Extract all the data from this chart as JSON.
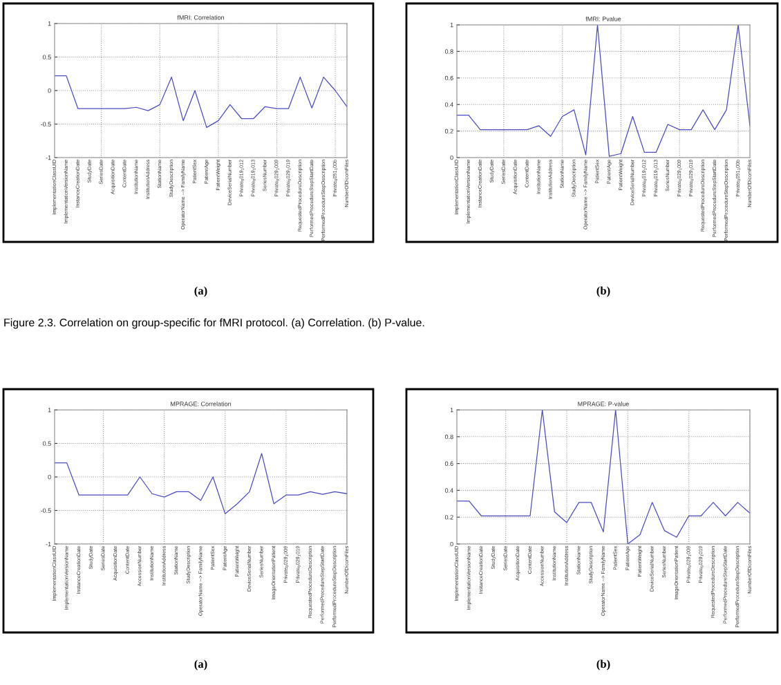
{
  "chart_data": [
    {
      "type": "line",
      "title": "fMRI: Correlation",
      "categories": [
        "ImplementationClassUID",
        "ImplementationVersionName",
        "InstanceCreationDate",
        "StudyDate",
        "SeriesDate",
        "AcquisitionDate",
        "ContentDate",
        "InstitutionName",
        "InstitutionAddress",
        "StationName",
        "StudyDescription",
        "OperatorName --> FamilyName",
        "PatientSex",
        "PatientAge",
        "PatientWeight",
        "DeviceSerialNumber",
        "Private$_{0}$019$_{1}$012",
        "Private$_{0}$019$_{1}$013",
        "SeriesNumber",
        "Private$_{0}$029$_{1}$009",
        "Private$_{0}$029$_{1}$019",
        "RequestedProcedureDescription",
        "PerformedProcedureStepStartDate",
        "PerformedProcedureStepDescription",
        "Private$_{0}$051$_{1}$00b",
        "NumberOfDicomFiles"
      ],
      "series": [
        {
          "color": "#4a4ac4",
          "values": [
            0.22,
            0.22,
            -0.27,
            -0.27,
            -0.27,
            -0.27,
            -0.27,
            -0.25,
            -0.3,
            -0.21,
            0.2,
            -0.45,
            0,
            -0.55,
            -0.45,
            -0.21,
            -0.42,
            -0.42,
            -0.24,
            -0.27,
            -0.27,
            0.2,
            -0.26,
            0.2,
            0,
            -0.24
          ]
        }
      ],
      "ylim": [
        -1,
        1
      ],
      "yticks": [
        -1,
        -0.5,
        0,
        0.5,
        1
      ],
      "grid": true,
      "annotations": [
        "(a)",
        "Figure 2.3. Correlation on group-specific for fMRI protocol. (a) Correlation. (b) P-value."
      ]
    },
    {
      "type": "line",
      "title": "fMRI: Pvalue",
      "categories": [
        "ImplementationClassUID",
        "ImplementationVersionName",
        "InstanceCreationDate",
        "StudyDate",
        "SeriesDate",
        "AcquisitionDate",
        "ContentDate",
        "InstitutionName",
        "InstitutionAddress",
        "StationName",
        "StudyDescription",
        "OperatorName --> FamilyName",
        "PatientSex",
        "PatientAge",
        "PatientWeight",
        "DeviceSerialNumber",
        "Private$_{0}$019$_{1}$012",
        "Private$_{0}$019$_{1}$013",
        "SeriesNumber",
        "Private$_{0}$029$_{1}$009",
        "Private$_{0}$029$_{1}$019",
        "RequestedProcedureDescription",
        "PerformedProcedureStepStartDate",
        "PerformedProcedureStepDescription",
        "Private$_{0}$051$_{1}$00b",
        "NumberOfDicomFiles"
      ],
      "series": [
        {
          "color": "#4a4ac4",
          "values": [
            0.32,
            0.32,
            0.21,
            0.21,
            0.21,
            0.21,
            0.21,
            0.24,
            0.16,
            0.31,
            0.36,
            0.02,
            1.0,
            0.01,
            0.03,
            0.31,
            0.04,
            0.04,
            0.25,
            0.21,
            0.21,
            0.36,
            0.21,
            0.36,
            1.0,
            0.24
          ]
        }
      ],
      "ylim": [
        0,
        1
      ],
      "yticks": [
        0,
        0.2,
        0.4,
        0.6,
        0.8,
        1
      ],
      "grid": true,
      "annotations": [
        "(b)"
      ]
    },
    {
      "type": "line",
      "title": "MPRAGE: Correlation",
      "categories": [
        "ImplementationClassUID",
        "ImplementationVersionName",
        "InstanceCreationDate",
        "StudyDate",
        "SeriesDate",
        "AcquisitionDate",
        "ContentDate",
        "AccessionNumber",
        "InstitutionName",
        "InstitutionAddress",
        "StationName",
        "StudyDescription",
        "OperatorName --> FamilyName",
        "PatientSex",
        "PatientAge",
        "PatientWeight",
        "DeviceSerialNumber",
        "SeriesNumber",
        "ImageOrientationPatient",
        "Private$_{0}$029$_{1}$009",
        "Private$_{0}$029$_{1}$019",
        "RequestedProcedureDescription",
        "PerformedProcedureStepStartDate",
        "PerformedProcedureStepDescription",
        "NumberOfDicomFiles"
      ],
      "series": [
        {
          "color": "#4a4ac4",
          "values": [
            0.21,
            0.21,
            -0.27,
            -0.27,
            -0.27,
            -0.27,
            -0.27,
            0.0,
            -0.25,
            -0.3,
            -0.22,
            -0.22,
            -0.35,
            0.0,
            -0.55,
            -0.4,
            -0.22,
            0.35,
            -0.4,
            -0.27,
            -0.27,
            -0.22,
            -0.26,
            -0.22,
            -0.25
          ]
        }
      ],
      "ylim": [
        -1,
        1
      ],
      "yticks": [
        -1,
        -0.5,
        0,
        0.5,
        1
      ],
      "grid": true,
      "annotations": [
        "(a)"
      ]
    },
    {
      "type": "line",
      "title": "MPRAGE: P-value",
      "categories": [
        "ImplementationClassUID",
        "ImplementationVersionName",
        "InstanceCreationDate",
        "StudyDate",
        "SeriesDate",
        "AcquisitionDate",
        "ContentDate",
        "AccessionNumber",
        "InstitutionName",
        "InstitutionAddress",
        "StationName",
        "StudyDescription",
        "OperatorName --> FamilyName",
        "PatientSex",
        "PatientAge",
        "PatientWeight",
        "DeviceSerialNumber",
        "SeriesNumber",
        "ImageOrientationPatient",
        "Private$_{0}$029$_{1}$009",
        "Private$_{0}$029$_{1}$019",
        "RequestedProcedureDescription",
        "PerformedProcedureStepStartDate",
        "PerformedProcedureStepDescription",
        "NumberOfDicomFiles"
      ],
      "series": [
        {
          "color": "#4a4ac4",
          "values": [
            0.32,
            0.32,
            0.21,
            0.21,
            0.21,
            0.21,
            0.21,
            1.0,
            0.24,
            0.16,
            0.31,
            0.31,
            0.09,
            1.0,
            0.0,
            0.07,
            0.31,
            0.1,
            0.05,
            0.21,
            0.21,
            0.31,
            0.21,
            0.31,
            0.23
          ]
        }
      ],
      "ylim": [
        0,
        1
      ],
      "yticks": [
        0,
        0.2,
        0.4,
        0.6,
        0.8,
        1
      ],
      "grid": true,
      "annotations": [
        "(b)"
      ]
    }
  ]
}
